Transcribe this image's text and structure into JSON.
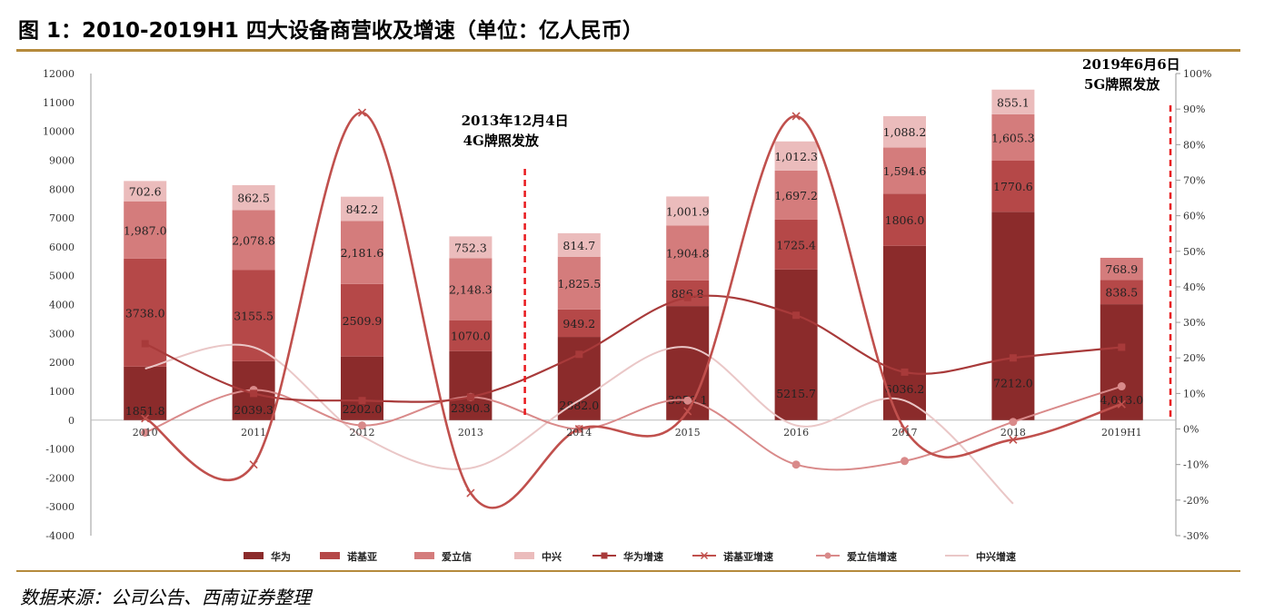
{
  "title": "图 1：2010-2019H1 四大设备商营收及增速（单位：亿人民币）",
  "source": "数据来源：公司公告、西南证券整理",
  "chart_data": {
    "type": "bar",
    "stacked": true,
    "categories": [
      "2010",
      "2011",
      "2012",
      "2013",
      "2014",
      "2015",
      "2016",
      "2017",
      "2018",
      "2019H1"
    ],
    "series": [
      {
        "name": "华为",
        "color": "#8b2b2b",
        "values": [
          1851.8,
          2039.3,
          2202.0,
          2390.3,
          2882.0,
          3950.1,
          5215.7,
          6036.2,
          7212.0,
          4013.0
        ],
        "labels": [
          "1851.8",
          "2039.3",
          "2202.0",
          "2390.3",
          "2882.0",
          "3950.1",
          "5215.7",
          "6036.2",
          "7212.0",
          "4,013.0"
        ]
      },
      {
        "name": "诺基亚",
        "color": "#b54848",
        "values": [
          3738.0,
          3155.5,
          2509.9,
          1070.0,
          949.2,
          886.8,
          1725.4,
          1806.0,
          1770.6,
          838.5
        ],
        "labels": [
          "3738.0",
          "3155.5",
          "2509.9",
          "1070.0",
          "949.2",
          "886.8",
          "1725.4",
          "1806.0",
          "1770.6",
          "838.5"
        ]
      },
      {
        "name": "爱立信",
        "color": "#d47c7c",
        "values": [
          1987.0,
          2078.8,
          2181.6,
          2148.3,
          1825.5,
          1904.8,
          1697.2,
          1594.6,
          1605.3,
          768.9
        ],
        "labels": [
          "1,987.0",
          "2,078.8",
          "2,181.6",
          "2,148.3",
          "1,825.5",
          "1,904.8",
          "1,697.2",
          "1,594.6",
          "1,605.3",
          "768.9"
        ]
      },
      {
        "name": "中兴",
        "color": "#ebbcbc",
        "values": [
          702.6,
          862.5,
          842.2,
          752.3,
          814.7,
          1001.9,
          1012.3,
          1088.2,
          855.1,
          0
        ],
        "labels": [
          "702.6",
          "862.5",
          "842.2",
          "752.3",
          "814.7",
          "1,001.9",
          "1,012.3",
          "1,088.2",
          "855.1",
          ""
        ]
      }
    ],
    "growth_series": [
      {
        "name": "华为增速",
        "color": "#a83a3a",
        "marker": "square",
        "values": [
          24,
          10,
          8,
          9,
          21,
          37,
          32,
          16,
          20,
          23
        ]
      },
      {
        "name": "诺基亚增速",
        "color": "#c0504d",
        "marker": "x",
        "values": [
          3,
          -10,
          89,
          -18,
          0,
          5,
          88,
          0,
          -3,
          7
        ]
      },
      {
        "name": "爱立信增速",
        "color": "#d98a8a",
        "marker": "circle",
        "values": [
          -1,
          11,
          1,
          9,
          0,
          8,
          -10,
          -9,
          2,
          12
        ]
      },
      {
        "name": "中兴增速",
        "color": "#eac7c7",
        "marker": "none",
        "values": [
          17,
          23,
          -2,
          -11,
          8,
          23,
          1,
          8,
          -21
        ]
      }
    ],
    "left_axis": {
      "min": -4000,
      "max": 12000,
      "step": 1000,
      "ticks": [
        "12000",
        "11000",
        "10000",
        "9000",
        "8000",
        "7000",
        "6000",
        "5000",
        "4000",
        "3000",
        "2000",
        "1000",
        "0",
        "-1000",
        "-2000",
        "-3000",
        "-4000"
      ]
    },
    "right_axis": {
      "min": -30,
      "max": 100,
      "step": 10,
      "unit": "%",
      "ticks": [
        "100%",
        "90%",
        "80%",
        "70%",
        "60%",
        "50%",
        "40%",
        "30%",
        "20%",
        "10%",
        "0%",
        "-10%",
        "-20%",
        "-30%"
      ]
    },
    "annotations": [
      {
        "line1": "2013年12月4日",
        "line2": "4G牌照发放",
        "after_category": "2013"
      },
      {
        "line1": "2019年6月6日",
        "line2": "5G牌照发放",
        "after_category": "2019H1"
      }
    ],
    "legend": {
      "position": "bottom",
      "entries": [
        "华为",
        "诺基亚",
        "爱立信",
        "中兴",
        "华为增速",
        "诺基亚增速",
        "爱立信增速",
        "中兴增速"
      ]
    }
  }
}
